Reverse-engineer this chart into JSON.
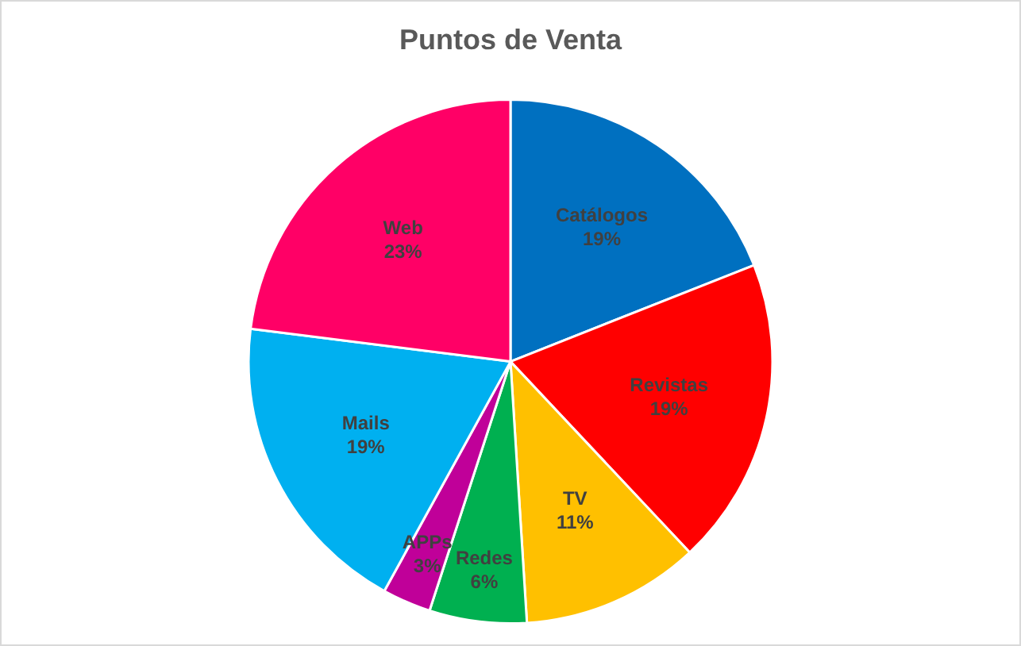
{
  "chart_data": {
    "type": "pie",
    "title": "Puntos de Venta",
    "categories": [
      "Catálogos",
      "Revistas",
      "TV",
      "Redes",
      "APPs",
      "Mails",
      "Web"
    ],
    "values": [
      19,
      19,
      11,
      6,
      3,
      19,
      23
    ],
    "value_labels": [
      "19%",
      "19%",
      "11%",
      "6%",
      "3%",
      "19%",
      "23%"
    ],
    "colors": [
      "#0070c0",
      "#ff0000",
      "#ffc000",
      "#00b050",
      "#c00099",
      "#00b0f0",
      "#ff0066"
    ]
  }
}
